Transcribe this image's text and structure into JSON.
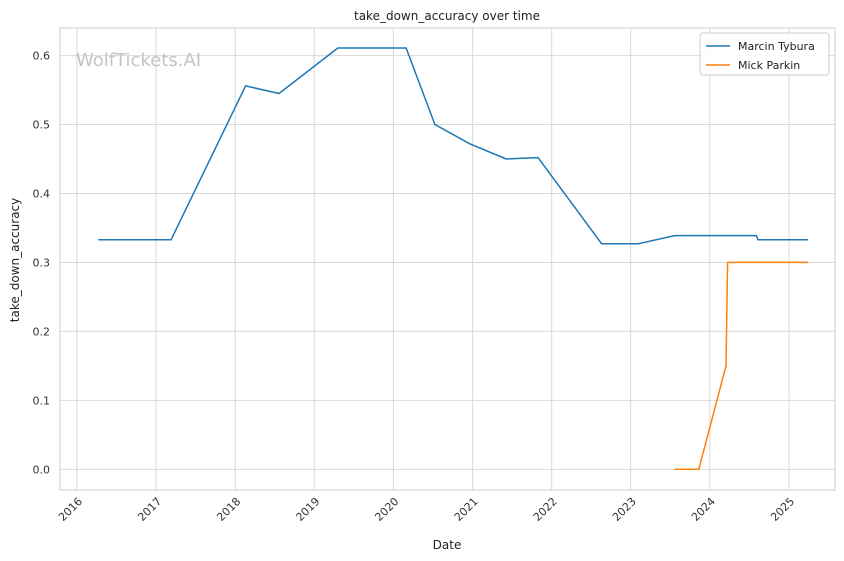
{
  "chart_data": {
    "type": "line",
    "title": "take_down_accuracy over time",
    "xlabel": "Date",
    "ylabel": "take_down_accuracy",
    "watermark": "WolfTickets.AI",
    "x_ticks": [
      "2016",
      "2017",
      "2018",
      "2019",
      "2020",
      "2021",
      "2022",
      "2023",
      "2024",
      "2025"
    ],
    "y_ticks": [
      "0.0",
      "0.1",
      "0.2",
      "0.3",
      "0.4",
      "0.5",
      "0.6"
    ],
    "xlim": [
      "2015-10-15",
      "2025-08-01"
    ],
    "ylim": [
      -0.03,
      0.64
    ],
    "grid": true,
    "legend_position": "top-right",
    "series": [
      {
        "name": "Marcin Tybura",
        "color": "#1f77b4",
        "points": [
          {
            "x": "2016-04-09",
            "y": 0.333
          },
          {
            "x": "2017-03-11",
            "y": 0.333
          },
          {
            "x": "2018-02-18",
            "y": 0.556
          },
          {
            "x": "2018-07-22",
            "y": 0.545
          },
          {
            "x": "2019-04-20",
            "y": 0.611
          },
          {
            "x": "2020-02-29",
            "y": 0.611
          },
          {
            "x": "2020-07-11",
            "y": 0.5
          },
          {
            "x": "2020-12-19",
            "y": 0.472
          },
          {
            "x": "2021-06-05",
            "y": 0.45
          },
          {
            "x": "2021-10-30",
            "y": 0.452
          },
          {
            "x": "2022-08-20",
            "y": 0.327
          },
          {
            "x": "2023-02-04",
            "y": 0.327
          },
          {
            "x": "2023-07-22",
            "y": 0.339
          },
          {
            "x": "2024-08-03",
            "y": 0.339
          },
          {
            "x": "2024-08-10",
            "y": 0.333
          },
          {
            "x": "2025-03-29",
            "y": 0.333
          }
        ]
      },
      {
        "name": "Mick Parkin",
        "color": "#ff7f0e",
        "points": [
          {
            "x": "2023-07-22",
            "y": 0.0
          },
          {
            "x": "2023-11-11",
            "y": 0.0
          },
          {
            "x": "2024-03-16",
            "y": 0.15
          },
          {
            "x": "2024-03-23",
            "y": 0.3
          },
          {
            "x": "2025-03-29",
            "y": 0.3
          }
        ]
      }
    ]
  }
}
